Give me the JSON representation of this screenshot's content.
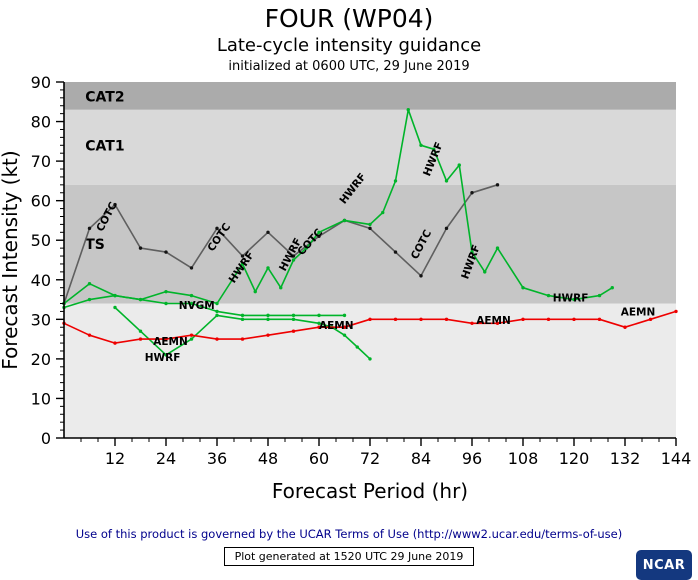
{
  "header": {
    "title": "FOUR (WP04)",
    "subtitle": "Late-cycle intensity guidance",
    "init": "initialized at 0600 UTC, 29 June 2019"
  },
  "footer": {
    "terms": "Use of this product is governed by the UCAR Terms of Use (http://www2.ucar.edu/terms-of-use)",
    "generated": "Plot generated at 1520 UTC  29 June 2019",
    "logo": "NCAR",
    "logo_color": "#14387f"
  },
  "chart_data": {
    "type": "line",
    "title": "FOUR (WP04)",
    "subtitle": "Late-cycle intensity guidance",
    "xlabel": "Forecast Period (hr)",
    "ylabel": "Forecast Intensity (kt)",
    "xlim": [
      0,
      144
    ],
    "ylim": [
      0,
      90
    ],
    "xticks": [
      12,
      24,
      36,
      48,
      60,
      72,
      84,
      96,
      108,
      120,
      132,
      144
    ],
    "yticks": [
      0,
      10,
      20,
      30,
      40,
      50,
      60,
      70,
      80,
      90
    ],
    "x_minor_step": 4,
    "y_minor_step": 2,
    "grid": false,
    "plot_bg": "#ebebeb",
    "bands": [
      {
        "label": "TS",
        "from": 34,
        "to": 64,
        "color": "#c6c6c6",
        "label_color": "#ffffff",
        "label_x": 5,
        "label_y": 49
      },
      {
        "label": "CAT1",
        "from": 64,
        "to": 83,
        "color": "#d9d9d9",
        "label_color": "#c0c0c0",
        "label_x": 5,
        "label_y": 74
      },
      {
        "label": "CAT2",
        "from": 83,
        "to": 90,
        "color": "#ababab",
        "label_color": "#ffffff",
        "label_x": 5,
        "label_y": 86.3
      }
    ],
    "series": [
      {
        "name": "NVGM",
        "color": "#00b42a",
        "marker": "#00b42a",
        "x": [
          0,
          6,
          12,
          18,
          24,
          30,
          36,
          42,
          48,
          54,
          60,
          66
        ],
        "y": [
          33,
          35,
          36,
          35,
          34,
          34,
          32,
          31,
          31,
          31,
          31,
          31
        ]
      },
      {
        "name": "HWRF-prev",
        "color": "#00b42a",
        "marker": "#00b42a",
        "x": [
          12,
          18,
          24,
          30,
          36,
          42,
          48,
          54,
          60,
          63,
          66,
          69,
          72
        ],
        "y": [
          33,
          27,
          21,
          25,
          31,
          30,
          30,
          30,
          29,
          28,
          26,
          23,
          20
        ]
      },
      {
        "name": "AEMN",
        "color": "#ee0000",
        "marker": "#ee0000",
        "x": [
          0,
          6,
          12,
          18,
          24,
          30,
          36,
          42,
          48,
          54,
          60,
          66,
          72,
          78,
          84,
          90,
          96,
          102,
          108,
          114,
          120,
          126,
          132,
          138,
          144
        ],
        "y": [
          29,
          26,
          24,
          25,
          25,
          26,
          25,
          25,
          26,
          27,
          28,
          28,
          30,
          30,
          30,
          30,
          29,
          29,
          30,
          30,
          30,
          30,
          28,
          30,
          32
        ]
      },
      {
        "name": "COTC",
        "color": "#5f5f5f",
        "marker": "#141414",
        "x": [
          0,
          6,
          12,
          18,
          24,
          30,
          36,
          42,
          48,
          54,
          60,
          66,
          72,
          78,
          84,
          90,
          96,
          102
        ],
        "y": [
          34,
          53,
          59,
          48,
          47,
          43,
          53,
          46,
          52,
          46,
          51,
          55,
          53,
          47,
          41,
          53,
          62,
          64
        ]
      },
      {
        "name": "HWRF",
        "color": "#00b42a",
        "marker": "#00b42a",
        "x": [
          0,
          6,
          12,
          18,
          24,
          30,
          36,
          42,
          45,
          48,
          51,
          54,
          57,
          60,
          66,
          72,
          75,
          78,
          81,
          84,
          87,
          90,
          93,
          96,
          99,
          102,
          108,
          114,
          120,
          126,
          129
        ],
        "y": [
          34,
          39,
          36,
          35,
          37,
          36,
          34,
          44,
          37,
          43,
          38,
          45,
          48,
          52,
          55,
          54,
          57,
          65,
          83,
          74,
          73,
          65,
          69,
          47,
          42,
          48,
          38,
          36,
          35,
          36,
          38
        ]
      }
    ],
    "labels": [
      {
        "text": "COTC",
        "x": 9,
        "y": 52,
        "rot": -62
      },
      {
        "text": "COTC",
        "x": 35,
        "y": 47,
        "rot": -55
      },
      {
        "text": "COTC",
        "x": 56,
        "y": 46,
        "rot": -48
      },
      {
        "text": "COTC",
        "x": 83,
        "y": 45,
        "rot": -62
      },
      {
        "text": "HWRF",
        "x": 40,
        "y": 39,
        "rot": -55
      },
      {
        "text": "HWRF",
        "x": 52,
        "y": 42,
        "rot": -62
      },
      {
        "text": "HWRF",
        "x": 66,
        "y": 59,
        "rot": -52
      },
      {
        "text": "HWRF",
        "x": 86,
        "y": 66,
        "rot": -68
      },
      {
        "text": "HWRF",
        "x": 95,
        "y": 40,
        "rot": -70
      },
      {
        "text": "HWRF",
        "x": 115,
        "y": 34.5,
        "rot": 0
      },
      {
        "text": "HWRF",
        "x": 19,
        "y": 19.5,
        "rot": 0
      },
      {
        "text": "NVGM",
        "x": 27,
        "y": 32.6,
        "rot": 0
      },
      {
        "text": "AEMN",
        "x": 21,
        "y": 23.5,
        "rot": 0
      },
      {
        "text": "AEMN",
        "x": 60,
        "y": 27.5,
        "rot": 0
      },
      {
        "text": "AEMN",
        "x": 97,
        "y": 28.8,
        "rot": 0
      },
      {
        "text": "AEMN",
        "x": 131,
        "y": 31,
        "rot": 0
      }
    ],
    "legend_position": "none"
  }
}
